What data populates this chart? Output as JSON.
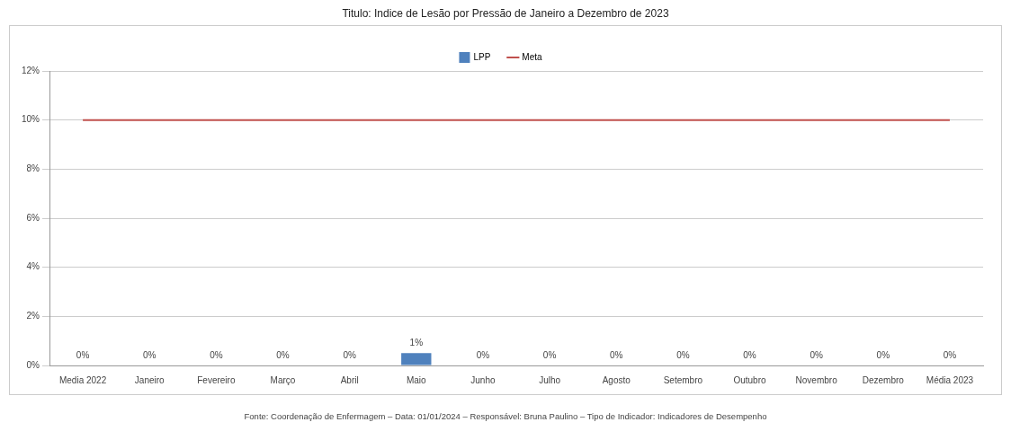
{
  "chart_data": {
    "type": "bar",
    "title": "Titulo: Indice de Lesão por Pressão de Janeiro a Dezembro de 2023",
    "categories": [
      "Media 2022",
      "Janeiro",
      "Fevereiro",
      "Março",
      "Abril",
      "Maio",
      "Junho",
      "Julho",
      "Agosto",
      "Setembro",
      "Outubro",
      "Novembro",
      "Dezembro",
      "Média 2023"
    ],
    "series": [
      {
        "name": "LPP",
        "color": "#4f81bd",
        "values": [
          0,
          0,
          0,
          0,
          0,
          0.5,
          0,
          0,
          0,
          0,
          0,
          0,
          0,
          0
        ],
        "value_labels": [
          "0%",
          "0%",
          "0%",
          "0%",
          "0%",
          "1%",
          "0%",
          "0%",
          "0%",
          "0%",
          "0%",
          "0%",
          "0%",
          "0%"
        ]
      },
      {
        "name": "Meta",
        "type": "line",
        "color": "#c0504d",
        "values": [
          10,
          10,
          10,
          10,
          10,
          10,
          10,
          10,
          10,
          10,
          10,
          10,
          10,
          10
        ]
      }
    ],
    "ylim": [
      0,
      12
    ],
    "yticks": [
      {
        "value": 0,
        "label": "0%"
      },
      {
        "value": 2,
        "label": "2%"
      },
      {
        "value": 4,
        "label": "4%"
      },
      {
        "value": 6,
        "label": "6%"
      },
      {
        "value": 8,
        "label": "8%"
      },
      {
        "value": 10,
        "label": "10%"
      },
      {
        "value": 12,
        "label": "12%"
      }
    ],
    "grid": "y",
    "legend": "top",
    "marker": "none",
    "annotations": [
      "Fonte: Coordenação de Enfermagem – Data: 01/01/2024 – Responsável: Bruna Paulino – Tipo de Indicador: Indicadores de Desempenho"
    ]
  }
}
